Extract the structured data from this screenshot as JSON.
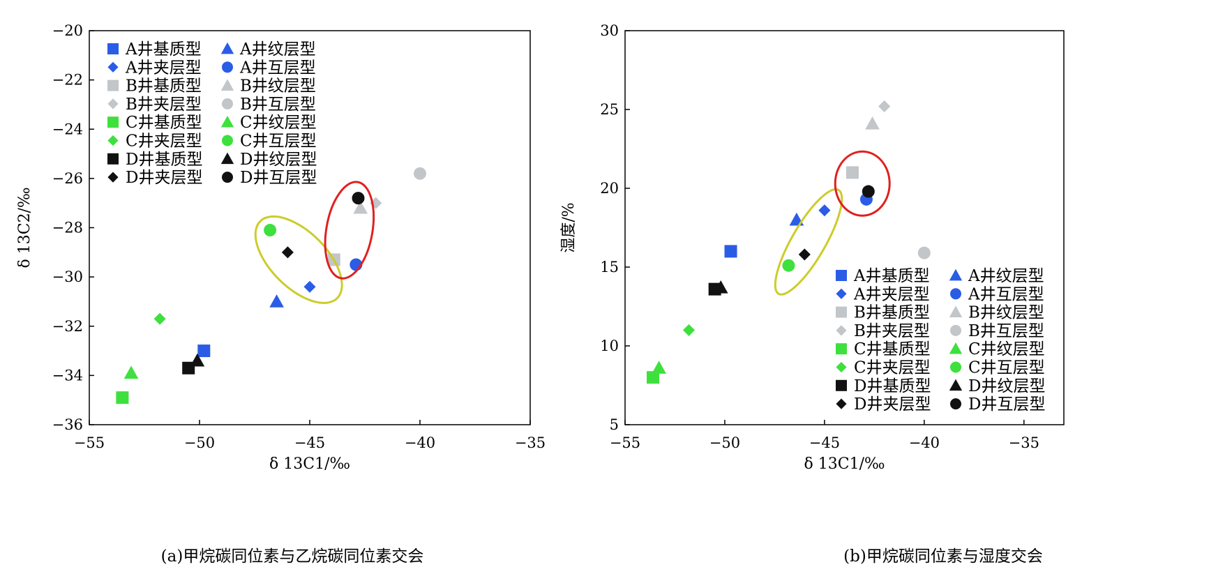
{
  "series_styles": [
    {
      "key": "A-matrix",
      "label": "A井基质型",
      "shape": "square",
      "color": "#2a5ce6"
    },
    {
      "key": "A-laminated",
      "label": "A井纹层型",
      "shape": "triangle",
      "color": "#2a5ce6"
    },
    {
      "key": "A-interbed",
      "label": "A井夹层型",
      "shape": "diamond",
      "color": "#2a5ce6"
    },
    {
      "key": "A-inter",
      "label": "A井互层型",
      "shape": "circle",
      "color": "#2a5ce6"
    },
    {
      "key": "B-matrix",
      "label": "B井基质型",
      "shape": "square",
      "color": "#c2c6c9"
    },
    {
      "key": "B-laminated",
      "label": "B井纹层型",
      "shape": "triangle",
      "color": "#c2c6c9"
    },
    {
      "key": "B-interbed",
      "label": "B井夹层型",
      "shape": "diamond",
      "color": "#c2c6c9"
    },
    {
      "key": "B-inter",
      "label": "B井互层型",
      "shape": "circle",
      "color": "#c2c6c9"
    },
    {
      "key": "C-matrix",
      "label": "C井基质型",
      "shape": "square",
      "color": "#3ee03e"
    },
    {
      "key": "C-laminated",
      "label": "C井纹层型",
      "shape": "triangle",
      "color": "#3ee03e"
    },
    {
      "key": "C-interbed",
      "label": "C井夹层型",
      "shape": "diamond",
      "color": "#3ee03e"
    },
    {
      "key": "C-inter",
      "label": "C井互层型",
      "shape": "circle",
      "color": "#3ee03e"
    },
    {
      "key": "D-matrix",
      "label": "D井基质型",
      "shape": "square",
      "color": "#111111"
    },
    {
      "key": "D-laminated",
      "label": "D井纹层型",
      "shape": "triangle",
      "color": "#111111"
    },
    {
      "key": "D-interbed",
      "label": "D井夹层型",
      "shape": "diamond",
      "color": "#111111"
    },
    {
      "key": "D-inter",
      "label": "D井互层型",
      "shape": "circle",
      "color": "#111111"
    }
  ],
  "highlight_colors": {
    "ellipse_yellow": "#cccc2a",
    "ellipse_red": "#e02020"
  },
  "chart_data": [
    {
      "type": "scatter",
      "caption": "(a)甲烷碳同位素与乙烷碳同位素交会",
      "xlabel": "δ 13C1/‰",
      "ylabel": "δ 13C2/‰",
      "xlim": [
        -55,
        -35
      ],
      "ylim": [
        -36,
        -20
      ],
      "xticks": [
        "−55",
        "−50",
        "−45",
        "−40",
        "−35"
      ],
      "yticks": [
        "−36",
        "−34",
        "−32",
        "−30",
        "−28",
        "−26",
        "−24",
        "−22",
        "−20"
      ],
      "grid": false,
      "legend_position": "top-left",
      "points": [
        {
          "series": "A-matrix",
          "x": -49.8,
          "y": -33.0
        },
        {
          "series": "A-laminated",
          "x": -46.5,
          "y": -31.0
        },
        {
          "series": "A-interbed",
          "x": -45.0,
          "y": -30.4
        },
        {
          "series": "A-inter",
          "x": -42.9,
          "y": -29.5
        },
        {
          "series": "B-matrix",
          "x": -43.9,
          "y": -29.3
        },
        {
          "series": "B-laminated",
          "x": -42.7,
          "y": -27.2
        },
        {
          "series": "B-interbed",
          "x": -42.0,
          "y": -27.0
        },
        {
          "series": "B-inter",
          "x": -40.0,
          "y": -25.8
        },
        {
          "series": "C-matrix",
          "x": -53.5,
          "y": -34.9
        },
        {
          "series": "C-laminated",
          "x": -53.1,
          "y": -33.9
        },
        {
          "series": "C-interbed",
          "x": -51.8,
          "y": -31.7
        },
        {
          "series": "C-inter",
          "x": -46.8,
          "y": -28.1
        },
        {
          "series": "D-matrix",
          "x": -50.5,
          "y": -33.7
        },
        {
          "series": "D-laminated",
          "x": -50.1,
          "y": -33.4
        },
        {
          "series": "D-interbed",
          "x": -46.0,
          "y": -29.0
        },
        {
          "series": "D-inter",
          "x": -42.8,
          "y": -26.8
        }
      ],
      "highlights": [
        {
          "color": "ellipse_yellow",
          "center": [
            -45.5,
            -29.3
          ],
          "rx": 12.5,
          "ry": 1.3,
          "angle": 45
        },
        {
          "color": "ellipse_red",
          "center": [
            -43.2,
            -28.1
          ],
          "rx": 2.1,
          "ry": 5.9,
          "angle": 10
        }
      ]
    },
    {
      "type": "scatter",
      "caption": "(b)甲烷碳同位素与湿度交会",
      "xlabel": "δ 13C1/‰",
      "ylabel": "湿度/%",
      "xlim": [
        -55,
        -33
      ],
      "ylim": [
        5,
        30
      ],
      "xticks": [
        "−55",
        "−50",
        "−45",
        "−40",
        "−35"
      ],
      "yticks": [
        "5",
        "10",
        "15",
        "20",
        "25",
        "30"
      ],
      "grid": false,
      "legend_position": "bottom-right",
      "points": [
        {
          "series": "A-matrix",
          "x": -49.7,
          "y": 16.0
        },
        {
          "series": "A-laminated",
          "x": -46.4,
          "y": 18.0
        },
        {
          "series": "A-interbed",
          "x": -45.0,
          "y": 18.6
        },
        {
          "series": "A-inter",
          "x": -42.9,
          "y": 19.3
        },
        {
          "series": "B-matrix",
          "x": -43.6,
          "y": 21.0
        },
        {
          "series": "B-laminated",
          "x": -42.6,
          "y": 24.1
        },
        {
          "series": "B-interbed",
          "x": -42.0,
          "y": 25.2
        },
        {
          "series": "B-inter",
          "x": -40.0,
          "y": 15.9
        },
        {
          "series": "C-matrix",
          "x": -53.6,
          "y": 8.0
        },
        {
          "series": "C-laminated",
          "x": -53.3,
          "y": 8.6
        },
        {
          "series": "C-interbed",
          "x": -51.8,
          "y": 11.0
        },
        {
          "series": "C-inter",
          "x": -46.8,
          "y": 15.1
        },
        {
          "series": "D-matrix",
          "x": -50.5,
          "y": 13.6
        },
        {
          "series": "D-laminated",
          "x": -50.2,
          "y": 13.7
        },
        {
          "series": "D-interbed",
          "x": -46.0,
          "y": 15.8
        },
        {
          "series": "D-inter",
          "x": -42.8,
          "y": 19.8
        }
      ],
      "highlights": [
        {
          "color": "ellipse_yellow",
          "center": [
            -45.8,
            16.6
          ],
          "rx": 17,
          "ry": 1.2,
          "angle": 60
        },
        {
          "color": "ellipse_red",
          "center": [
            -43.1,
            20.3
          ],
          "rx": 2.7,
          "ry": 2.1,
          "angle": 0
        }
      ]
    }
  ]
}
